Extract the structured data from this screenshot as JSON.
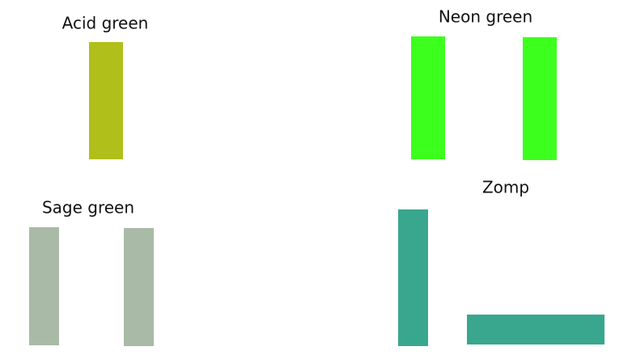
{
  "swatches": [
    {
      "label": "Acid green",
      "color": "#b0bf1a"
    },
    {
      "label": "Neon green",
      "color": "#3dff1d"
    },
    {
      "label": "Sage green",
      "color": "#a9baa7"
    },
    {
      "label": "Zomp",
      "color": "#39a78e"
    }
  ]
}
